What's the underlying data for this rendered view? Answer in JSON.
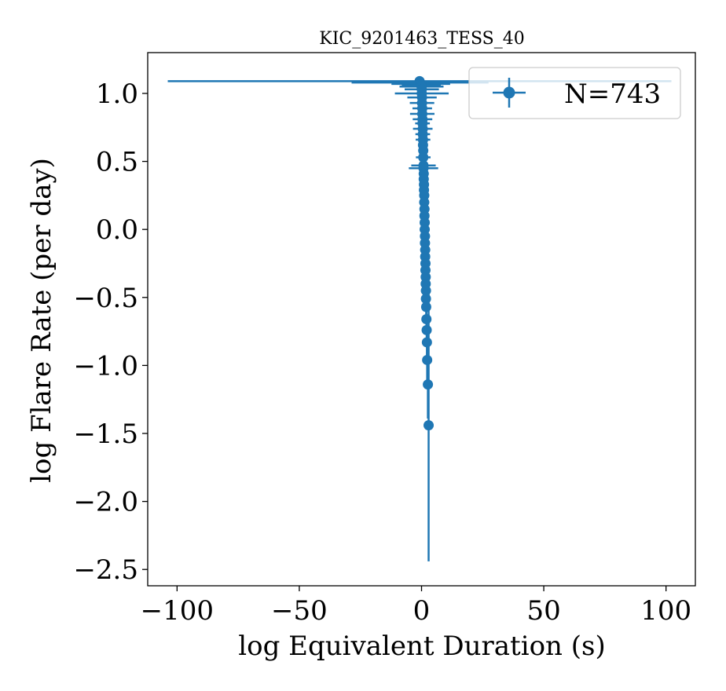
{
  "chart_data": {
    "type": "scatter",
    "title": "KIC_9201463_TESS_40",
    "xlabel": "log Equivalent Duration (s)",
    "ylabel": "log Flare Rate (per day)",
    "xlim": [
      -112,
      112
    ],
    "ylim": [
      -2.62,
      1.3
    ],
    "xticks": [
      -100,
      -50,
      0,
      50,
      100
    ],
    "xtick_labels": [
      "−100",
      "−50",
      "0",
      "50",
      "100"
    ],
    "yticks": [
      1.0,
      0.5,
      0.0,
      -0.5,
      -1.0,
      -1.5,
      -2.0,
      -2.5
    ],
    "ytick_labels": [
      "1.0",
      "0.5",
      "0.0",
      "−0.5",
      "−1.0",
      "−1.5",
      "−2.0",
      "−2.5"
    ],
    "grid": false,
    "legend_position": "top-right",
    "series": [
      {
        "name": "N=743",
        "color": "#1f77b4",
        "marker": "circle",
        "points": [
          {
            "x": -0.8,
            "y": 1.09,
            "xerr": 103,
            "yerr": 0.01
          },
          {
            "x": -0.6,
            "y": 1.08,
            "xerr": 28,
            "yerr": 0.01
          },
          {
            "x": -0.3,
            "y": 1.07,
            "xerr": 12,
            "yerr": 0.02
          },
          {
            "x": -0.1,
            "y": 1.06,
            "xerr": 8,
            "yerr": 0.02
          },
          {
            "x": 0.0,
            "y": 1.05,
            "xerr": 9,
            "yerr": 0.02
          },
          {
            "x": 0.1,
            "y": 1.03,
            "xerr": 7,
            "yerr": 0.02
          },
          {
            "x": 0.1,
            "y": 1.0,
            "xerr": 11,
            "yerr": 0.02
          },
          {
            "x": 0.2,
            "y": 0.97,
            "xerr": 6,
            "yerr": 0.02
          },
          {
            "x": 0.2,
            "y": 0.93,
            "xerr": 5,
            "yerr": 0.02
          },
          {
            "x": 0.3,
            "y": 0.89,
            "xerr": 4,
            "yerr": 0.02
          },
          {
            "x": 0.3,
            "y": 0.85,
            "xerr": 5,
            "yerr": 0.02
          },
          {
            "x": 0.4,
            "y": 0.81,
            "xerr": 4,
            "yerr": 0.02
          },
          {
            "x": 0.4,
            "y": 0.78,
            "xerr": 3,
            "yerr": 0.02
          },
          {
            "x": 0.5,
            "y": 0.74,
            "xerr": 4,
            "yerr": 0.02
          },
          {
            "x": 0.5,
            "y": 0.7,
            "xerr": 3,
            "yerr": 0.02
          },
          {
            "x": 0.6,
            "y": 0.66,
            "xerr": 3,
            "yerr": 0.02
          },
          {
            "x": 0.6,
            "y": 0.62,
            "xerr": 2,
            "yerr": 0.02
          },
          {
            "x": 0.7,
            "y": 0.58,
            "xerr": 2,
            "yerr": 0.02
          },
          {
            "x": 0.7,
            "y": 0.53,
            "xerr": 3,
            "yerr": 0.02
          },
          {
            "x": 0.8,
            "y": 0.47,
            "xerr": 5,
            "yerr": 0.03
          },
          {
            "x": 0.8,
            "y": 0.45,
            "xerr": 6,
            "yerr": 0.03
          },
          {
            "x": 0.9,
            "y": 0.41,
            "xerr": 2,
            "yerr": 0.03
          },
          {
            "x": 0.9,
            "y": 0.37,
            "xerr": 2,
            "yerr": 0.03
          },
          {
            "x": 1.0,
            "y": 0.33,
            "xerr": 2,
            "yerr": 0.03
          },
          {
            "x": 1.0,
            "y": 0.29,
            "xerr": 2,
            "yerr": 0.03
          },
          {
            "x": 1.1,
            "y": 0.25,
            "xerr": 2,
            "yerr": 0.03
          },
          {
            "x": 1.1,
            "y": 0.2,
            "xerr": 2,
            "yerr": 0.03
          },
          {
            "x": 1.2,
            "y": 0.15,
            "xerr": 2,
            "yerr": 0.03
          },
          {
            "x": 1.2,
            "y": 0.1,
            "xerr": 2,
            "yerr": 0.03
          },
          {
            "x": 1.3,
            "y": 0.05,
            "xerr": 2,
            "yerr": 0.04
          },
          {
            "x": 1.3,
            "y": 0.0,
            "xerr": 2,
            "yerr": 0.04
          },
          {
            "x": 1.4,
            "y": -0.05,
            "xerr": 2,
            "yerr": 0.04
          },
          {
            "x": 1.4,
            "y": -0.1,
            "xerr": 2,
            "yerr": 0.04
          },
          {
            "x": 1.5,
            "y": -0.15,
            "xerr": 2,
            "yerr": 0.04
          },
          {
            "x": 1.5,
            "y": -0.2,
            "xerr": 2,
            "yerr": 0.04
          },
          {
            "x": 1.6,
            "y": -0.25,
            "xerr": 2,
            "yerr": 0.05
          },
          {
            "x": 1.6,
            "y": -0.3,
            "xerr": 2,
            "yerr": 0.05
          },
          {
            "x": 1.7,
            "y": -0.35,
            "xerr": 1.5,
            "yerr": 0.05
          },
          {
            "x": 1.7,
            "y": -0.4,
            "xerr": 1.5,
            "yerr": 0.06
          },
          {
            "x": 1.8,
            "y": -0.45,
            "xerr": 1.5,
            "yerr": 0.06
          },
          {
            "x": 1.8,
            "y": -0.51,
            "xerr": 1.5,
            "yerr": 0.07
          },
          {
            "x": 1.9,
            "y": -0.57,
            "xerr": 1.5,
            "yerr": 0.08
          },
          {
            "x": 2.0,
            "y": -0.66,
            "xerr": 1.5,
            "yerr": 0.09
          },
          {
            "x": 2.1,
            "y": -0.74,
            "xerr": 1.5,
            "yerr": 0.11
          },
          {
            "x": 2.2,
            "y": -0.83,
            "xerr": 1.5,
            "yerr": 0.13
          },
          {
            "x": 2.3,
            "y": -0.96,
            "xerr": 1.5,
            "yerr": 0.17
          },
          {
            "x": 2.6,
            "y": -1.14,
            "xerr": 1.5,
            "yerr": 0.25
          },
          {
            "x": 2.9,
            "y": -1.44,
            "xerr": 1.5,
            "yerr": 1.0
          }
        ]
      }
    ]
  }
}
